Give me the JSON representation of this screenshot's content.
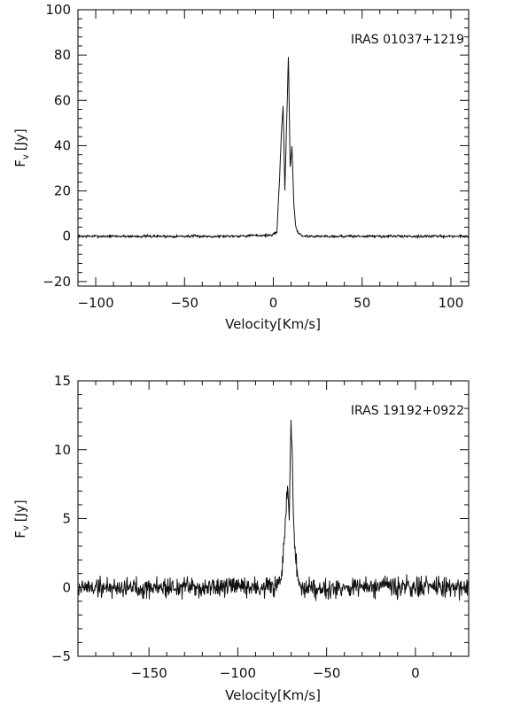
{
  "figure": {
    "panels": [
      {
        "annotation": "IRAS 01037+1219",
        "xlabel": "Velocity[Km/s]",
        "ylabel": "F",
        "ylabel_sub": "v",
        "ylabel_unit": "[Jy]"
      },
      {
        "annotation": "IRAS 19192+0922",
        "xlabel": "Velocity[Km/s]",
        "ylabel": "F",
        "ylabel_sub": "v",
        "ylabel_unit": "[Jy]"
      }
    ]
  },
  "chart_data": [
    {
      "type": "line",
      "title": "",
      "annotation": "IRAS 01037+1219",
      "xlabel": "Velocity[Km/s]",
      "ylabel": "Fv [Jy]",
      "xlim": [
        -110,
        110
      ],
      "ylim": [
        -22,
        100
      ],
      "xticks": [
        -100,
        -50,
        0,
        50,
        100
      ],
      "yticks": [
        -20,
        0,
        20,
        40,
        60,
        80,
        100
      ],
      "grid": false,
      "series": [
        {
          "noise_amplitude": 0.6,
          "x": [
            -110,
            -90,
            -60,
            -30,
            0,
            2,
            3.5,
            4.5,
            5.5,
            6.5,
            7.5,
            8.5,
            9.5,
            10.5,
            11.5,
            12.5,
            13.5,
            15,
            17,
            30,
            60,
            90,
            110
          ],
          "y": [
            0,
            0,
            0,
            0,
            0.5,
            2,
            25,
            45,
            58,
            20,
            50,
            80,
            30,
            40,
            15,
            5,
            2,
            1,
            0,
            0,
            0,
            0,
            0
          ]
        }
      ]
    },
    {
      "type": "line",
      "title": "",
      "annotation": "IRAS 19192+0922",
      "xlabel": "Velocity[Km/s]",
      "ylabel": "Fv [Jy]",
      "xlim": [
        -190,
        30
      ],
      "ylim": [
        -5,
        15
      ],
      "xticks": [
        -150,
        -100,
        -50,
        0
      ],
      "yticks": [
        -5,
        0,
        5,
        10,
        15
      ],
      "grid": false,
      "series": [
        {
          "noise_amplitude": 0.7,
          "x": [
            -190,
            -150,
            -100,
            -80,
            -76,
            -75,
            -74,
            -73,
            -72,
            -71,
            -70.5,
            -70,
            -69.5,
            -69,
            -68,
            -67,
            -66,
            -64,
            -50,
            0,
            30
          ],
          "y": [
            0,
            0,
            0,
            0,
            0.3,
            1,
            3,
            5,
            7,
            5.5,
            9,
            11.4,
            10,
            7,
            3,
            1.5,
            0.5,
            0,
            0,
            0,
            0
          ]
        }
      ]
    }
  ]
}
